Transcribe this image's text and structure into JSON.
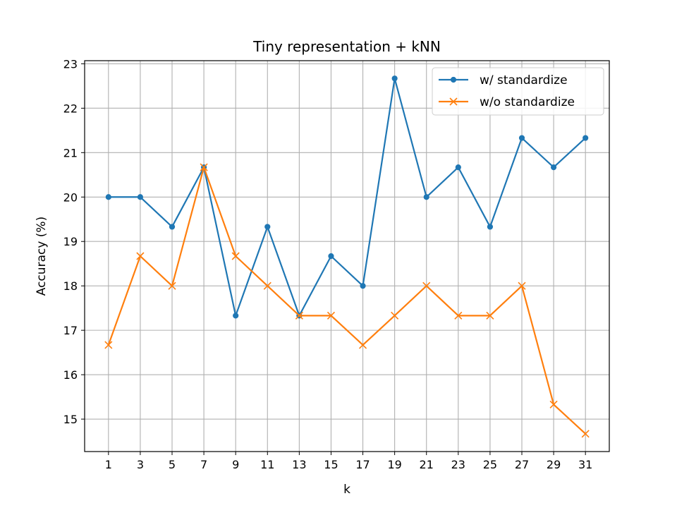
{
  "chart_data": {
    "type": "line",
    "title": "Tiny representation + kNN",
    "xlabel": "k",
    "ylabel": "Accuracy (%)",
    "x": [
      1,
      3,
      5,
      7,
      9,
      11,
      13,
      15,
      17,
      19,
      21,
      23,
      25,
      27,
      29,
      31
    ],
    "xlim": [
      -0.5,
      32.5
    ],
    "ylim": [
      14.27,
      23.07
    ],
    "yticks": [
      15,
      16,
      17,
      18,
      19,
      20,
      21,
      22,
      23
    ],
    "grid": true,
    "legend_position": "top-right",
    "series": [
      {
        "name": "w/ standardize",
        "color": "#1f77b4",
        "marker": "dot",
        "values": [
          20.0,
          20.0,
          19.33,
          20.67,
          17.33,
          19.33,
          17.33,
          18.67,
          18.0,
          22.67,
          20.0,
          20.67,
          19.33,
          21.33,
          20.67,
          21.33
        ]
      },
      {
        "name": "w/o standardize",
        "color": "#ff7f0e",
        "marker": "x",
        "values": [
          16.67,
          18.67,
          18.0,
          20.67,
          18.67,
          18.0,
          17.33,
          17.33,
          16.67,
          17.33,
          18.0,
          17.33,
          17.33,
          18.0,
          15.33,
          14.67
        ]
      }
    ]
  }
}
